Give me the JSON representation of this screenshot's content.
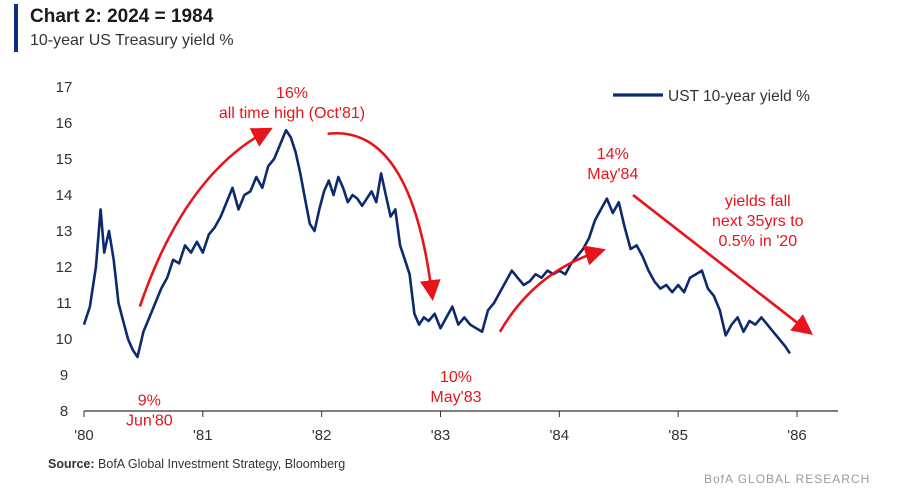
{
  "header": {
    "title": "Chart 2: 2024 = 1984",
    "subtitle": "10-year US Treasury yield %"
  },
  "footer": {
    "source_label": "Source:",
    "source_text": "BofA Global Investment Strategy, Bloomberg",
    "watermark": "BofA GLOBAL RESEARCH"
  },
  "colors": {
    "series": "#0d2a6e",
    "annotation": "#e8141c",
    "axis": "#333333",
    "text": "#333333"
  },
  "chart_data": {
    "type": "line",
    "title": "Chart 2: 2024 = 1984",
    "subtitle": "10-year US Treasury yield %",
    "xlabel": "",
    "ylabel": "",
    "xlim": [
      1980.0,
      1986.0
    ],
    "ylim": [
      8,
      17
    ],
    "yticks": [
      8,
      9,
      10,
      11,
      12,
      13,
      14,
      15,
      16,
      17
    ],
    "xticks": [
      {
        "x": 1980,
        "label": "'80"
      },
      {
        "x": 1981,
        "label": "'81"
      },
      {
        "x": 1982,
        "label": "'82"
      },
      {
        "x": 1983,
        "label": "'83"
      },
      {
        "x": 1984,
        "label": "'84"
      },
      {
        "x": 1985,
        "label": "'85"
      },
      {
        "x": 1986,
        "label": "'86"
      }
    ],
    "legend": {
      "position": "top-right",
      "entries": [
        "UST 10-year yield %"
      ]
    },
    "series": [
      {
        "name": "UST 10-year yield %",
        "points": [
          [
            1980.0,
            10.4
          ],
          [
            1980.05,
            10.9
          ],
          [
            1980.1,
            12.0
          ],
          [
            1980.14,
            13.6
          ],
          [
            1980.17,
            12.4
          ],
          [
            1980.21,
            13.0
          ],
          [
            1980.25,
            12.2
          ],
          [
            1980.29,
            11.0
          ],
          [
            1980.33,
            10.5
          ],
          [
            1980.37,
            10.0
          ],
          [
            1980.41,
            9.7
          ],
          [
            1980.45,
            9.5
          ],
          [
            1980.5,
            10.2
          ],
          [
            1980.55,
            10.6
          ],
          [
            1980.6,
            11.0
          ],
          [
            1980.65,
            11.4
          ],
          [
            1980.7,
            11.7
          ],
          [
            1980.75,
            12.2
          ],
          [
            1980.8,
            12.1
          ],
          [
            1980.85,
            12.6
          ],
          [
            1980.9,
            12.4
          ],
          [
            1980.95,
            12.7
          ],
          [
            1981.0,
            12.4
          ],
          [
            1981.05,
            12.9
          ],
          [
            1981.1,
            13.1
          ],
          [
            1981.15,
            13.4
          ],
          [
            1981.2,
            13.8
          ],
          [
            1981.25,
            14.2
          ],
          [
            1981.3,
            13.6
          ],
          [
            1981.35,
            14.0
          ],
          [
            1981.4,
            14.1
          ],
          [
            1981.45,
            14.5
          ],
          [
            1981.5,
            14.2
          ],
          [
            1981.55,
            14.8
          ],
          [
            1981.6,
            15.0
          ],
          [
            1981.65,
            15.4
          ],
          [
            1981.7,
            15.8
          ],
          [
            1981.74,
            15.6
          ],
          [
            1981.78,
            15.2
          ],
          [
            1981.82,
            14.6
          ],
          [
            1981.86,
            13.9
          ],
          [
            1981.9,
            13.2
          ],
          [
            1981.94,
            13.0
          ],
          [
            1981.98,
            13.6
          ],
          [
            1982.02,
            14.1
          ],
          [
            1982.06,
            14.4
          ],
          [
            1982.1,
            14.0
          ],
          [
            1982.14,
            14.5
          ],
          [
            1982.18,
            14.2
          ],
          [
            1982.22,
            13.8
          ],
          [
            1982.26,
            14.0
          ],
          [
            1982.3,
            13.9
          ],
          [
            1982.34,
            13.7
          ],
          [
            1982.38,
            13.9
          ],
          [
            1982.42,
            14.1
          ],
          [
            1982.46,
            13.8
          ],
          [
            1982.5,
            14.6
          ],
          [
            1982.54,
            14.0
          ],
          [
            1982.58,
            13.4
          ],
          [
            1982.62,
            13.6
          ],
          [
            1982.66,
            12.6
          ],
          [
            1982.7,
            12.2
          ],
          [
            1982.74,
            11.8
          ],
          [
            1982.78,
            10.7
          ],
          [
            1982.82,
            10.4
          ],
          [
            1982.86,
            10.6
          ],
          [
            1982.9,
            10.5
          ],
          [
            1982.95,
            10.7
          ],
          [
            1983.0,
            10.3
          ],
          [
            1983.05,
            10.6
          ],
          [
            1983.1,
            10.9
          ],
          [
            1983.15,
            10.4
          ],
          [
            1983.2,
            10.6
          ],
          [
            1983.25,
            10.4
          ],
          [
            1983.3,
            10.3
          ],
          [
            1983.35,
            10.2
          ],
          [
            1983.4,
            10.8
          ],
          [
            1983.45,
            11.0
          ],
          [
            1983.5,
            11.3
          ],
          [
            1983.55,
            11.6
          ],
          [
            1983.6,
            11.9
          ],
          [
            1983.65,
            11.7
          ],
          [
            1983.7,
            11.5
          ],
          [
            1983.75,
            11.6
          ],
          [
            1983.8,
            11.8
          ],
          [
            1983.85,
            11.7
          ],
          [
            1983.9,
            11.9
          ],
          [
            1983.95,
            11.8
          ],
          [
            1984.0,
            11.9
          ],
          [
            1984.05,
            11.8
          ],
          [
            1984.1,
            12.1
          ],
          [
            1984.15,
            12.3
          ],
          [
            1984.2,
            12.5
          ],
          [
            1984.25,
            12.8
          ],
          [
            1984.3,
            13.3
          ],
          [
            1984.35,
            13.6
          ],
          [
            1984.4,
            13.9
          ],
          [
            1984.45,
            13.5
          ],
          [
            1984.5,
            13.8
          ],
          [
            1984.55,
            13.1
          ],
          [
            1984.6,
            12.5
          ],
          [
            1984.65,
            12.6
          ],
          [
            1984.7,
            12.3
          ],
          [
            1984.75,
            11.9
          ],
          [
            1984.8,
            11.6
          ],
          [
            1984.85,
            11.4
          ],
          [
            1984.9,
            11.5
          ],
          [
            1984.95,
            11.3
          ],
          [
            1985.0,
            11.5
          ],
          [
            1985.05,
            11.3
          ],
          [
            1985.1,
            11.7
          ],
          [
            1985.15,
            11.8
          ],
          [
            1985.2,
            11.9
          ],
          [
            1985.25,
            11.4
          ],
          [
            1985.3,
            11.2
          ],
          [
            1985.35,
            10.8
          ],
          [
            1985.4,
            10.1
          ],
          [
            1985.45,
            10.4
          ],
          [
            1985.5,
            10.6
          ],
          [
            1985.55,
            10.2
          ],
          [
            1985.6,
            10.5
          ],
          [
            1985.65,
            10.4
          ],
          [
            1985.7,
            10.6
          ],
          [
            1985.75,
            10.4
          ],
          [
            1985.8,
            10.2
          ],
          [
            1985.85,
            10.0
          ],
          [
            1985.9,
            9.8
          ],
          [
            1985.94,
            9.6
          ]
        ]
      }
    ],
    "annotations": [
      {
        "id": "jun80",
        "lines": [
          "9%",
          "Jun'80"
        ],
        "x": 1980.55,
        "y": 8.15,
        "anchor": "middle"
      },
      {
        "id": "oct81",
        "lines": [
          "16%",
          "all time high (Oct'81)"
        ],
        "x": 1981.75,
        "y": 16.7,
        "anchor": "middle"
      },
      {
        "id": "may83",
        "lines": [
          "10%",
          "May'83"
        ],
        "x": 1983.13,
        "y": 8.8,
        "anchor": "middle"
      },
      {
        "id": "may84",
        "lines": [
          "14%",
          "May'84"
        ],
        "x": 1984.45,
        "y": 15.0,
        "anchor": "middle"
      },
      {
        "id": "fall",
        "lines": [
          "yields fall",
          "next 35yrs to",
          "0.5% in '20"
        ],
        "x": 1985.67,
        "y": 13.7,
        "anchor": "middle"
      }
    ],
    "arrows": [
      {
        "id": "arrow-rise-80-81",
        "from": [
          1980.47,
          10.9
        ],
        "to": [
          1981.55,
          15.8
        ],
        "curve": "up"
      },
      {
        "id": "arrow-fall-81-82",
        "from": [
          1982.05,
          15.7
        ],
        "to": [
          1982.93,
          11.2
        ],
        "curve": "down"
      },
      {
        "id": "arrow-rise-83-84",
        "from": [
          1983.5,
          10.2
        ],
        "to": [
          1984.35,
          12.45
        ],
        "curve": "up"
      },
      {
        "id": "arrow-fall-84-85",
        "from": [
          1984.62,
          14.0
        ],
        "to": [
          1986.1,
          10.2
        ],
        "curve": "straight"
      }
    ]
  }
}
